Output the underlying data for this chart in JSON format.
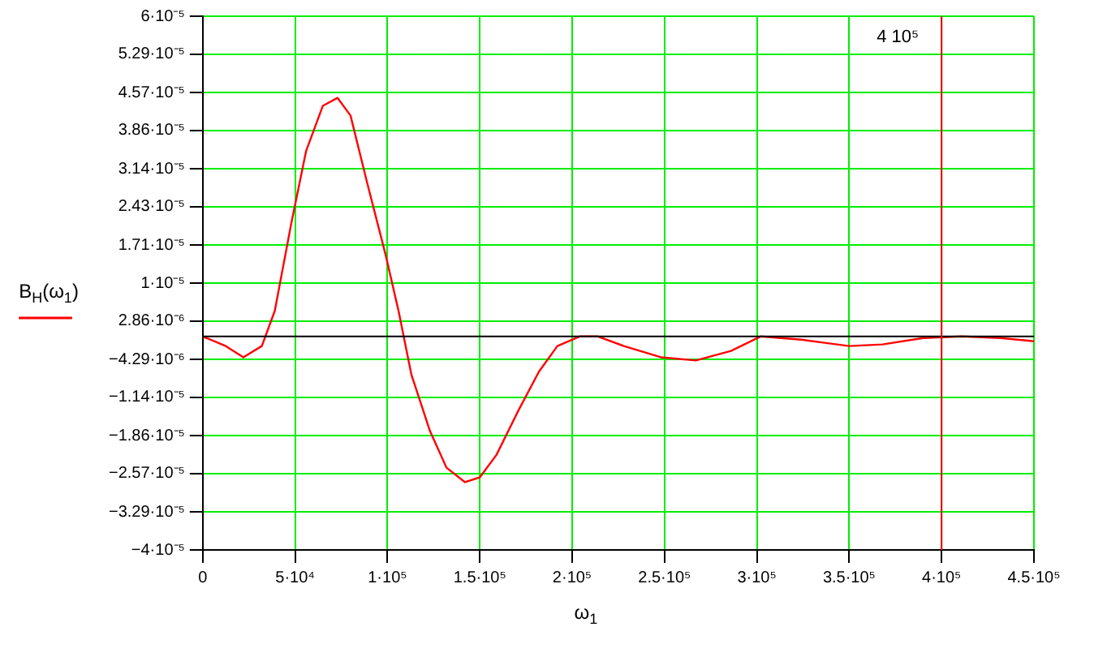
{
  "chart_data": {
    "type": "line",
    "xlabel": "ω$_{1}$",
    "ylabel": "B$_{H}$(ω$_{1}$)",
    "x": [
      0,
      12500,
      22000,
      32000,
      39000,
      48000,
      56000,
      65000,
      73000,
      80000,
      89000,
      99000,
      106000,
      113000,
      123000,
      132000,
      142000,
      150000,
      159000,
      171000,
      182000,
      192000,
      204000,
      214000,
      228000,
      248000,
      267000,
      286000,
      302000,
      324000,
      350000,
      368000,
      390000,
      411000,
      432000,
      450000
    ],
    "series": [
      {
        "color": "#ff0000",
        "values": [
          0,
          -1.8e-06,
          -3.9e-06,
          -1.8e-06,
          4.8e-06,
          2.13e-05,
          3.48e-05,
          4.32e-05,
          4.47e-05,
          4.14e-05,
          2.88e-05,
          1.53e-05,
          4.8e-06,
          -7.2e-06,
          -1.77e-05,
          -2.46e-05,
          -2.73e-05,
          -2.64e-05,
          -2.22e-05,
          -1.38e-05,
          -6.6e-06,
          -1.8e-06,
          0,
          0,
          -1.8e-06,
          -3.9e-06,
          -4.5e-06,
          -2.7e-06,
          0,
          -6e-07,
          -1.8e-06,
          -1.5e-06,
          -3e-07,
          0,
          -3e-07,
          -9e-07
        ]
      }
    ],
    "xlim": [
      0,
      450000
    ],
    "xticks": [
      0,
      {
        "value": 50000,
        "label": "5·10⁴"
      },
      {
        "value": 100000,
        "label": "1·10⁵"
      },
      {
        "value": 150000,
        "label": "1.5·10⁵"
      },
      {
        "value": 200000,
        "label": "2·10⁵"
      },
      {
        "value": 250000,
        "label": "2.5·10⁵"
      },
      {
        "value": 300000,
        "label": "3·10⁵"
      },
      {
        "value": 350000,
        "label": "3.5·10⁵"
      },
      {
        "value": 400000,
        "label": "4·10⁵"
      },
      {
        "value": 450000,
        "label": "4.5·10⁵"
      }
    ],
    "ylim": [
      -4e-05,
      6e-05
    ],
    "yticks": [
      {
        "value": 6e-05,
        "label": "6·10⁻⁵"
      },
      {
        "value": 5.29e-05,
        "label": "5.29·10⁻⁵"
      },
      {
        "value": 4.57e-05,
        "label": "4.57·10⁻⁵"
      },
      {
        "value": 3.86e-05,
        "label": "3.86·10⁻⁵"
      },
      {
        "value": 3.14e-05,
        "label": "3.14·10⁻⁵"
      },
      {
        "value": 2.43e-05,
        "label": "2.43·10⁻⁵"
      },
      {
        "value": 1.71e-05,
        "label": "1.71·10⁻⁵"
      },
      {
        "value": 1e-05,
        "label": "1·10⁻⁵"
      },
      {
        "value": 2.86e-06,
        "label": "2.86·10⁻⁶"
      },
      {
        "value": -4.29e-06,
        "label": "−4.29·10⁻⁶"
      },
      {
        "value": -1.14e-05,
        "label": "−1.14·10⁻⁵"
      },
      {
        "value": -1.86e-05,
        "label": "−1.86·10⁻⁵"
      },
      {
        "value": -2.57e-05,
        "label": "−2.57·10⁻⁵"
      },
      {
        "value": -3.29e-05,
        "label": "−3.29·10⁻⁵"
      },
      {
        "value": -4e-05,
        "label": "−4·10⁻⁵"
      }
    ],
    "ref_lines": [
      {
        "axis": "y",
        "value": 0,
        "color": "#000000"
      },
      {
        "axis": "x",
        "value": 400000,
        "label": "4 10⁵",
        "color": "#ff0000"
      }
    ],
    "grid": true,
    "marker": "none",
    "line_style": "solid"
  }
}
